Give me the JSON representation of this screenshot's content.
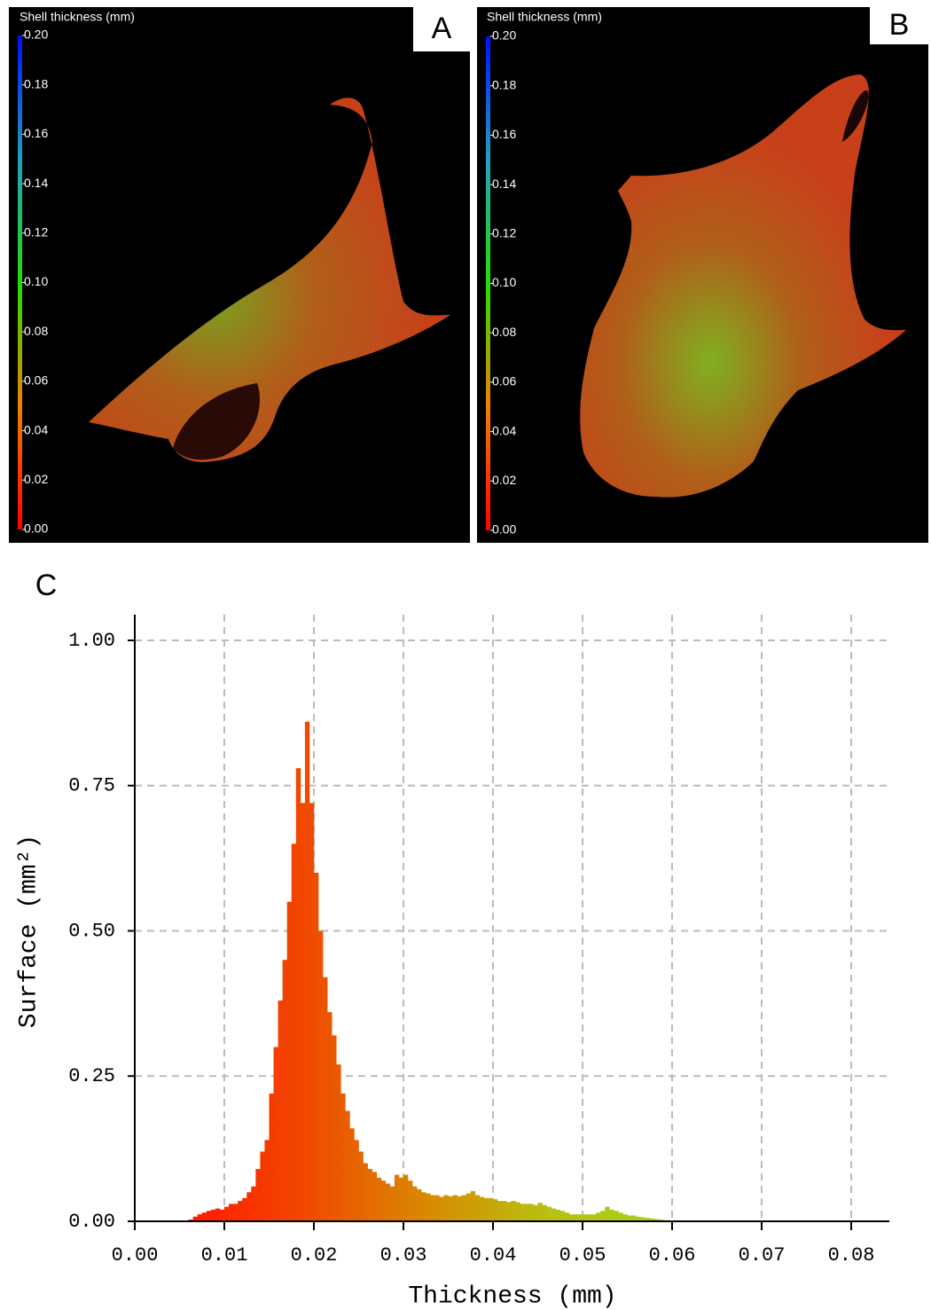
{
  "panels": [
    {
      "label": "A",
      "colorbar_title": "Shell thickness (mm)",
      "colorbar_lim": [
        0,
        0.2
      ],
      "colorbar_ticks": [
        {
          "value": 0,
          "label": "0.00"
        },
        {
          "value": 0.02,
          "label": "0.02"
        },
        {
          "value": 0.04,
          "label": "0.04"
        },
        {
          "value": 0.06,
          "label": "0.06"
        },
        {
          "value": 0.08,
          "label": "0.08"
        },
        {
          "value": 0.1,
          "label": "0.10"
        },
        {
          "value": 0.12,
          "label": "0.12"
        },
        {
          "value": 0.14,
          "label": "0.14"
        },
        {
          "value": 0.16,
          "label": "0.16"
        },
        {
          "value": 0.18,
          "label": "0.18"
        },
        {
          "value": 0.2,
          "label": "0.20"
        }
      ]
    },
    {
      "label": "B",
      "colorbar_title": "Shell thickness (mm)",
      "colorbar_lim": [
        0,
        0.2
      ],
      "colorbar_ticks": [
        {
          "value": 0,
          "label": "0.00"
        },
        {
          "value": 0.02,
          "label": "0.02"
        },
        {
          "value": 0.04,
          "label": "0.04"
        },
        {
          "value": 0.06,
          "label": "0.06"
        },
        {
          "value": 0.08,
          "label": "0.08"
        },
        {
          "value": 0.1,
          "label": "0.10"
        },
        {
          "value": 0.12,
          "label": "0.12"
        },
        {
          "value": 0.14,
          "label": "0.14"
        },
        {
          "value": 0.16,
          "label": "0.16"
        },
        {
          "value": 0.18,
          "label": "0.18"
        },
        {
          "value": 0.2,
          "label": "0.20"
        }
      ]
    }
  ],
  "chart_data": {
    "type": "histogram",
    "panel_label": "C",
    "xlabel": "Thickness (mm)",
    "ylabel": "Surface (mm²)",
    "xlim": [
      0,
      0.084
    ],
    "ylim": [
      0,
      1.04
    ],
    "xticks": [
      {
        "value": 0,
        "label": "0.00"
      },
      {
        "value": 0.01,
        "label": "0.01"
      },
      {
        "value": 0.02,
        "label": "0.02"
      },
      {
        "value": 0.03,
        "label": "0.03"
      },
      {
        "value": 0.04,
        "label": "0.04"
      },
      {
        "value": 0.05,
        "label": "0.05"
      },
      {
        "value": 0.06,
        "label": "0.06"
      },
      {
        "value": 0.07,
        "label": "0.07"
      },
      {
        "value": 0.08,
        "label": "0.08"
      }
    ],
    "yticks": [
      {
        "value": 0,
        "label": "0.00"
      },
      {
        "value": 0.25,
        "label": "0.25"
      },
      {
        "value": 0.5,
        "label": "0.50"
      },
      {
        "value": 0.75,
        "label": "0.75"
      },
      {
        "value": 1,
        "label": "1.00"
      }
    ],
    "grid": true,
    "color_gradient": [
      "#ff1a00",
      "#f04a00",
      "#d88a00",
      "#b8c010",
      "#a8d020"
    ],
    "bins": [
      0.006,
      0.0065,
      0.007,
      0.0075,
      0.008,
      0.0085,
      0.009,
      0.0095,
      0.01,
      0.0105,
      0.011,
      0.0115,
      0.012,
      0.0125,
      0.013,
      0.0135,
      0.014,
      0.0145,
      0.015,
      0.0155,
      0.016,
      0.0165,
      0.017,
      0.0175,
      0.018,
      0.0185,
      0.019,
      0.0195,
      0.02,
      0.0205,
      0.021,
      0.0215,
      0.022,
      0.0225,
      0.023,
      0.0235,
      0.024,
      0.0245,
      0.025,
      0.0255,
      0.026,
      0.0265,
      0.027,
      0.0275,
      0.028,
      0.0285,
      0.029,
      0.0295,
      0.03,
      0.0305,
      0.031,
      0.0315,
      0.032,
      0.0325,
      0.033,
      0.0335,
      0.034,
      0.0345,
      0.035,
      0.0355,
      0.036,
      0.0365,
      0.037,
      0.0375,
      0.038,
      0.0385,
      0.039,
      0.0395,
      0.04,
      0.0405,
      0.041,
      0.0415,
      0.042,
      0.0425,
      0.043,
      0.0435,
      0.044,
      0.0445,
      0.045,
      0.0455,
      0.046,
      0.0465,
      0.047,
      0.0475,
      0.048,
      0.0485,
      0.049,
      0.0495,
      0.05,
      0.0505,
      0.051,
      0.0515,
      0.052,
      0.0525,
      0.053,
      0.0535,
      0.054,
      0.0545,
      0.055,
      0.0555,
      0.056,
      0.0565,
      0.057,
      0.0575,
      0.058,
      0.0585,
      0.059,
      0.0595
    ],
    "values": [
      0.003,
      0.008,
      0.012,
      0.015,
      0.018,
      0.02,
      0.022,
      0.02,
      0.025,
      0.03,
      0.03,
      0.035,
      0.04,
      0.05,
      0.06,
      0.09,
      0.12,
      0.14,
      0.22,
      0.3,
      0.38,
      0.45,
      0.55,
      0.65,
      0.78,
      0.72,
      0.86,
      0.72,
      0.6,
      0.5,
      0.42,
      0.36,
      0.32,
      0.27,
      0.22,
      0.19,
      0.16,
      0.14,
      0.12,
      0.1,
      0.09,
      0.085,
      0.075,
      0.07,
      0.065,
      0.06,
      0.08,
      0.075,
      0.08,
      0.07,
      0.06,
      0.055,
      0.05,
      0.048,
      0.045,
      0.045,
      0.042,
      0.045,
      0.043,
      0.045,
      0.043,
      0.045,
      0.048,
      0.052,
      0.045,
      0.042,
      0.04,
      0.04,
      0.038,
      0.035,
      0.035,
      0.033,
      0.035,
      0.033,
      0.03,
      0.03,
      0.03,
      0.028,
      0.032,
      0.028,
      0.025,
      0.022,
      0.02,
      0.018,
      0.015,
      0.012,
      0.012,
      0.012,
      0.012,
      0.012,
      0.012,
      0.015,
      0.018,
      0.025,
      0.02,
      0.018,
      0.015,
      0.012,
      0.01,
      0.01,
      0.008,
      0.007,
      0.006,
      0.005,
      0.004,
      0.003,
      0.002
    ]
  }
}
